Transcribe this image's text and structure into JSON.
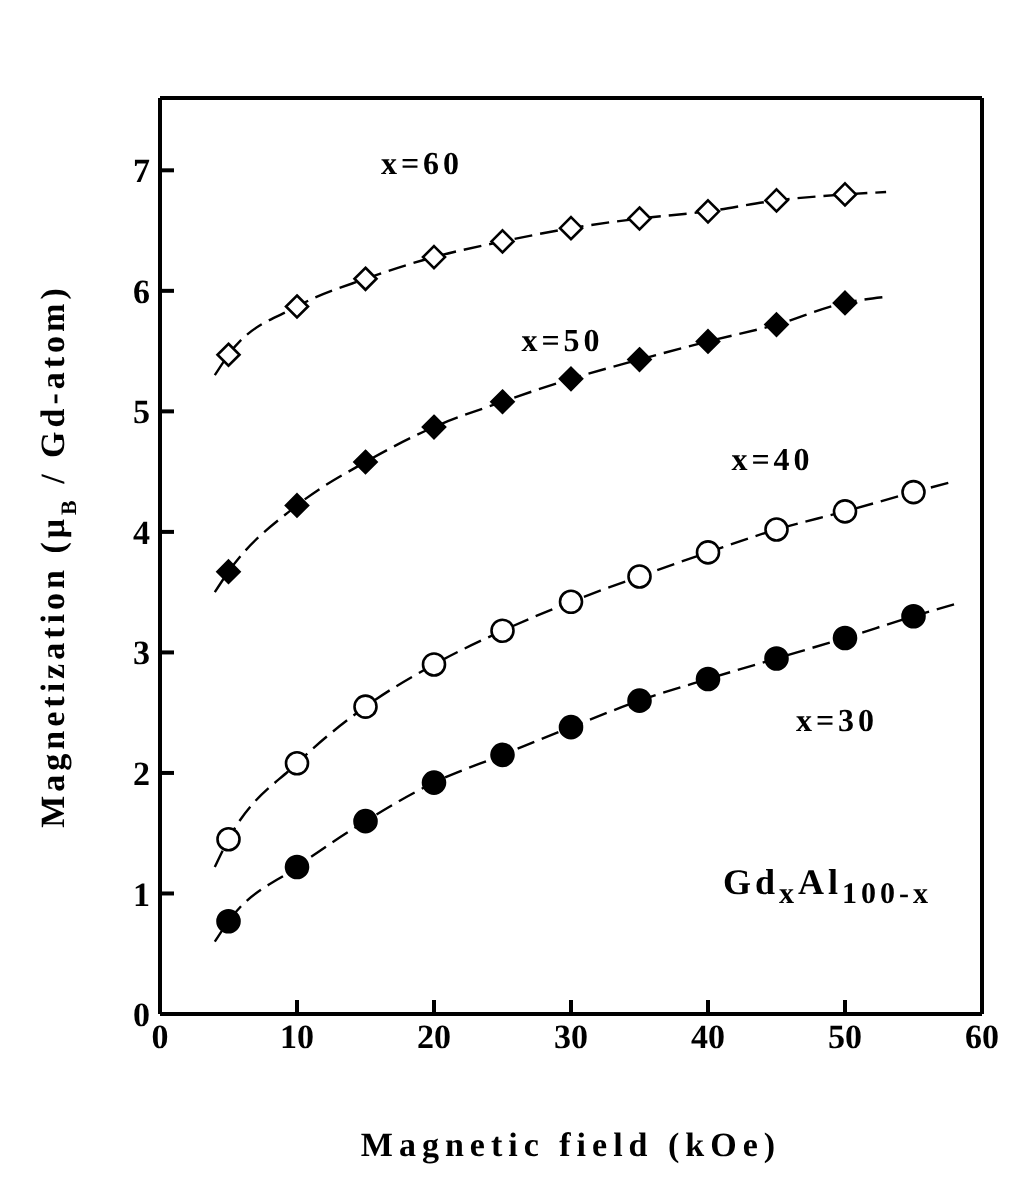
{
  "chart_data": {
    "type": "scatter",
    "xlabel": "Magnetic field (kOe)",
    "ylabel": "Magnetization (μ$_{B}$ / Gd-atom)",
    "xlim": [
      0,
      60
    ],
    "xticks": [
      0,
      10,
      20,
      30,
      40,
      50,
      60
    ],
    "ylim": [
      0,
      7.6
    ],
    "yticks": [
      0,
      1,
      2,
      3,
      4,
      5,
      6,
      7
    ],
    "series": [
      {
        "type": "line",
        "marker": "none",
        "line_style": "dashed",
        "color": "#000000",
        "x": [
          4,
          5,
          10,
          15,
          20,
          25,
          30,
          35,
          40,
          45,
          50,
          53
        ],
        "values": [
          5.3,
          5.47,
          5.87,
          6.1,
          6.28,
          6.41,
          6.52,
          6.6,
          6.66,
          6.75,
          6.8,
          6.82
        ]
      },
      {
        "type": "line",
        "marker": "none",
        "line_style": "dashed",
        "color": "#000000",
        "x": [
          4,
          5,
          10,
          15,
          20,
          25,
          30,
          35,
          40,
          45,
          50,
          53
        ],
        "values": [
          3.5,
          3.67,
          4.22,
          4.58,
          4.87,
          5.08,
          5.27,
          5.43,
          5.58,
          5.72,
          5.9,
          5.95
        ]
      },
      {
        "type": "line",
        "marker": "none",
        "line_style": "dashed",
        "color": "#000000",
        "x": [
          4,
          5,
          10,
          15,
          20,
          25,
          30,
          35,
          40,
          45,
          50,
          55,
          58
        ],
        "values": [
          1.22,
          1.45,
          2.08,
          2.55,
          2.9,
          3.18,
          3.42,
          3.63,
          3.83,
          4.02,
          4.17,
          4.33,
          4.42
        ]
      },
      {
        "type": "line",
        "marker": "none",
        "line_style": "dashed",
        "color": "#000000",
        "x": [
          4,
          5,
          10,
          15,
          20,
          25,
          30,
          35,
          40,
          45,
          50,
          55,
          58
        ],
        "values": [
          0.6,
          0.77,
          1.22,
          1.6,
          1.92,
          2.15,
          2.38,
          2.6,
          2.78,
          2.95,
          3.12,
          3.3,
          3.4
        ]
      },
      {
        "name": "x=60",
        "marker": "diamond",
        "color": "#ffffff",
        "x": [
          5,
          10,
          15,
          20,
          25,
          30,
          35,
          40,
          45,
          50
        ],
        "values": [
          5.47,
          5.87,
          6.1,
          6.28,
          6.41,
          6.52,
          6.6,
          6.66,
          6.75,
          6.8
        ]
      },
      {
        "name": "x=50",
        "marker": "diamond",
        "color": "#000000",
        "x": [
          5,
          10,
          15,
          20,
          25,
          30,
          35,
          40,
          45,
          50
        ],
        "values": [
          3.67,
          4.22,
          4.58,
          4.87,
          5.08,
          5.27,
          5.43,
          5.58,
          5.72,
          5.9
        ]
      },
      {
        "name": "x=40",
        "marker": "circle",
        "color": "#ffffff",
        "x": [
          5,
          10,
          15,
          20,
          25,
          30,
          35,
          40,
          45,
          50,
          55
        ],
        "values": [
          1.45,
          2.08,
          2.55,
          2.9,
          3.18,
          3.42,
          3.63,
          3.83,
          4.02,
          4.17,
          4.33
        ]
      },
      {
        "name": "x=30",
        "marker": "circle",
        "color": "#000000",
        "x": [
          5,
          10,
          15,
          20,
          25,
          30,
          35,
          40,
          45,
          50,
          55
        ],
        "values": [
          0.77,
          1.22,
          1.6,
          1.92,
          2.15,
          2.38,
          2.6,
          2.78,
          2.95,
          3.12,
          3.3
        ]
      }
    ],
    "annotations": [
      "Gd$_{x}$Al$_{100-x}$"
    ]
  }
}
